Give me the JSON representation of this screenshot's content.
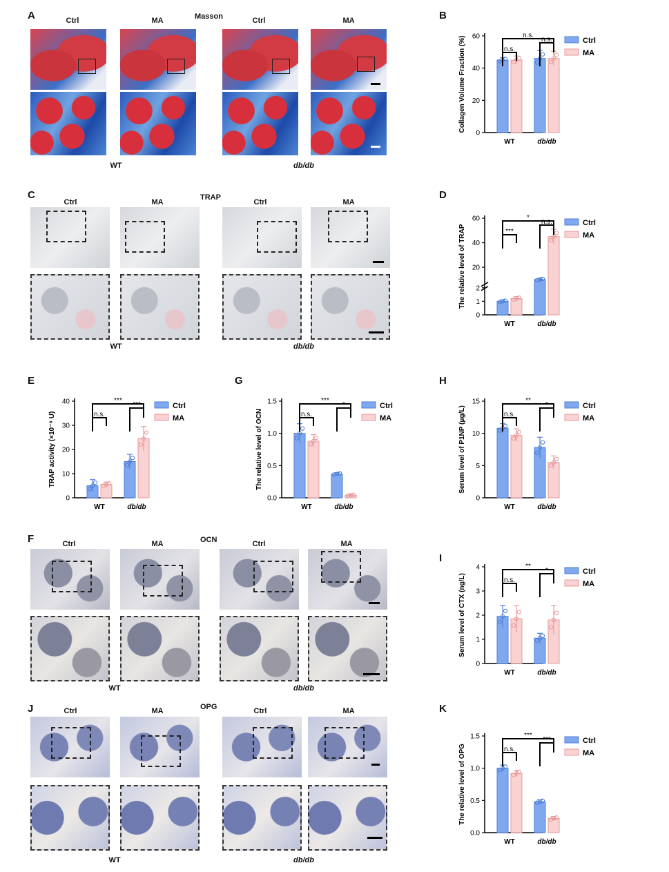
{
  "panels": {
    "A": "A",
    "B": "B",
    "C": "C",
    "D": "D",
    "E": "E",
    "F": "F",
    "G": "G",
    "H": "H",
    "I": "I",
    "J": "J",
    "K": "K"
  },
  "groups": {
    "ctrl": "Ctrl",
    "ma": "MA",
    "wt": "WT",
    "dbdb": "db/db"
  },
  "stains": {
    "masson": "Masson",
    "trap": "TRAP",
    "ocn": "OCN",
    "opg": "OPG"
  },
  "colors": {
    "ctrl": "#7fa8ee",
    "ctrl_edge": "#4f7fd9",
    "ma": "#f9d3d3",
    "ma_edge": "#e79a9a"
  },
  "chart_data": [
    {
      "id": "B",
      "type": "bar",
      "categories": [
        "WT",
        "db/db"
      ],
      "ylabel": "Collagen Volume Fraction (%)",
      "ylim": [
        0,
        60
      ],
      "yticks": [
        "0",
        "20",
        "40",
        "60"
      ],
      "legend": [
        "Ctrl",
        "MA"
      ],
      "series": [
        {
          "name": "Ctrl",
          "values": [
            45,
            46
          ],
          "err": [
            1.5,
            5
          ]
        },
        {
          "name": "MA",
          "values": [
            45,
            46
          ],
          "err": [
            2.5,
            4.5
          ]
        }
      ],
      "annotations": [
        "n.s.",
        "n.s.",
        "n.s."
      ]
    },
    {
      "id": "D",
      "type": "bar",
      "categories": [
        "WT",
        "db/db"
      ],
      "ylabel": "The relative level of TRAP",
      "broken_axis": true,
      "yticks": [
        "0",
        "1",
        "2",
        "20",
        "40",
        "60"
      ],
      "legend": [
        "Ctrl",
        "MA"
      ],
      "series": [
        {
          "name": "Ctrl",
          "values": [
            1,
            10
          ],
          "err": [
            0.1,
            1
          ]
        },
        {
          "name": "MA",
          "values": [
            1.2,
            45
          ],
          "err": [
            0.15,
            6
          ]
        }
      ],
      "annotations": [
        "*",
        "n.s.",
        "***"
      ]
    },
    {
      "id": "E",
      "type": "bar",
      "categories": [
        "WT",
        "db/db"
      ],
      "ylabel": "TRAP activity (×10⁻⁶ U)",
      "ylim": [
        0,
        40
      ],
      "yticks": [
        "0",
        "10",
        "20",
        "30",
        "40"
      ],
      "legend": [
        "Ctrl",
        "MA"
      ],
      "series": [
        {
          "name": "Ctrl",
          "values": [
            5,
            15
          ],
          "err": [
            2.5,
            3
          ]
        },
        {
          "name": "MA",
          "values": [
            5.5,
            24.5
          ],
          "err": [
            1,
            5
          ]
        }
      ],
      "annotations": [
        "***",
        "***",
        "n.s."
      ]
    },
    {
      "id": "G",
      "type": "bar",
      "categories": [
        "WT",
        "db/db"
      ],
      "ylabel": "The relative level of OCN",
      "ylim": [
        0,
        1.5
      ],
      "yticks": [
        "0.0",
        "0.5",
        "1.0",
        "1.5"
      ],
      "legend": [
        "Ctrl",
        "MA"
      ],
      "series": [
        {
          "name": "Ctrl",
          "values": [
            1.0,
            0.37
          ],
          "err": [
            0.15,
            0.02
          ]
        },
        {
          "name": "MA",
          "values": [
            0.88,
            0.04
          ],
          "err": [
            0.1,
            0.01
          ]
        }
      ],
      "annotations": [
        "***",
        "*",
        "n.s."
      ]
    },
    {
      "id": "H",
      "type": "bar",
      "categories": [
        "WT",
        "db/db"
      ],
      "ylabel": "Serum level of P1NP (μg/L)",
      "ylim": [
        0,
        15
      ],
      "yticks": [
        "0",
        "5",
        "10",
        "15"
      ],
      "legend": [
        "Ctrl",
        "MA"
      ],
      "series": [
        {
          "name": "Ctrl",
          "values": [
            10.8,
            7.8
          ],
          "err": [
            0.7,
            1.6
          ]
        },
        {
          "name": "MA",
          "values": [
            9.7,
            5.5
          ],
          "err": [
            1,
            1
          ]
        }
      ],
      "annotations": [
        "**",
        "*",
        "n.s."
      ]
    },
    {
      "id": "I",
      "type": "bar",
      "categories": [
        "WT",
        "db/db"
      ],
      "ylabel": "Serum level of CTX (ng/L)",
      "ylim": [
        0,
        4
      ],
      "yticks": [
        "0",
        "1",
        "2",
        "3",
        "4"
      ],
      "legend": [
        "Ctrl",
        "MA"
      ],
      "series": [
        {
          "name": "Ctrl",
          "values": [
            1.95,
            1.05
          ],
          "err": [
            0.45,
            0.2
          ]
        },
        {
          "name": "MA",
          "values": [
            1.85,
            1.8
          ],
          "err": [
            0.55,
            0.6
          ]
        }
      ],
      "annotations": [
        "**",
        "*",
        "n.s."
      ]
    },
    {
      "id": "K",
      "type": "bar",
      "categories": [
        "WT",
        "db/db"
      ],
      "ylabel": "The relative level of OPG",
      "ylim": [
        0,
        1.5
      ],
      "yticks": [
        "0.0",
        "0.5",
        "1.0",
        "1.5"
      ],
      "legend": [
        "Ctrl",
        "MA"
      ],
      "series": [
        {
          "name": "Ctrl",
          "values": [
            1.0,
            0.48
          ],
          "err": [
            0.05,
            0.03
          ]
        },
        {
          "name": "MA",
          "values": [
            0.92,
            0.22
          ],
          "err": [
            0.05,
            0.03
          ]
        }
      ],
      "annotations": [
        "***",
        "***",
        "n.s."
      ]
    }
  ]
}
